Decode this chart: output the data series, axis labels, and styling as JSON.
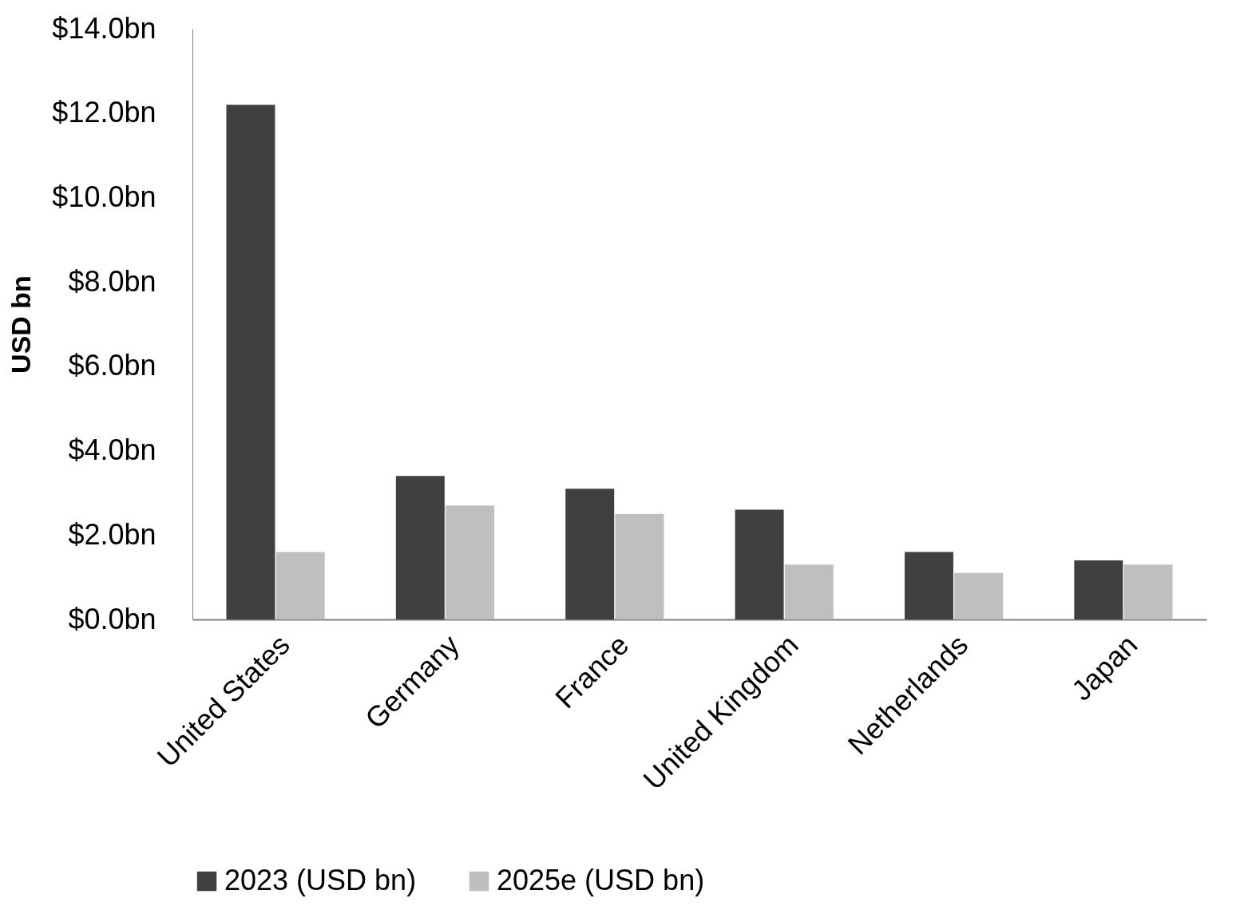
{
  "chart_data": {
    "type": "bar",
    "ylabel": "USD bn",
    "categories": [
      "United States",
      "Germany",
      "France",
      "United Kingdom",
      "Netherlands",
      "Japan"
    ],
    "series": [
      {
        "name": "2023 (USD bn)",
        "color": "#404040",
        "values": [
          12.2,
          3.4,
          3.1,
          2.6,
          1.6,
          1.4
        ]
      },
      {
        "name": "2025e (USD bn)",
        "color": "#bfbfbf",
        "values": [
          1.6,
          2.7,
          2.5,
          1.3,
          1.1,
          1.3
        ]
      }
    ],
    "ylim": [
      0,
      14
    ],
    "yticks": [
      {
        "value": 0,
        "label": "$0.0bn"
      },
      {
        "value": 2,
        "label": "$2.0bn"
      },
      {
        "value": 4,
        "label": "$4.0bn"
      },
      {
        "value": 6,
        "label": "$6.0bn"
      },
      {
        "value": 8,
        "label": "$8.0bn"
      },
      {
        "value": 10,
        "label": "$10.0bn"
      },
      {
        "value": 12,
        "label": "$12.0bn"
      },
      {
        "value": 14,
        "label": "$14.0bn"
      }
    ],
    "grid": false,
    "legend": "bottom"
  }
}
